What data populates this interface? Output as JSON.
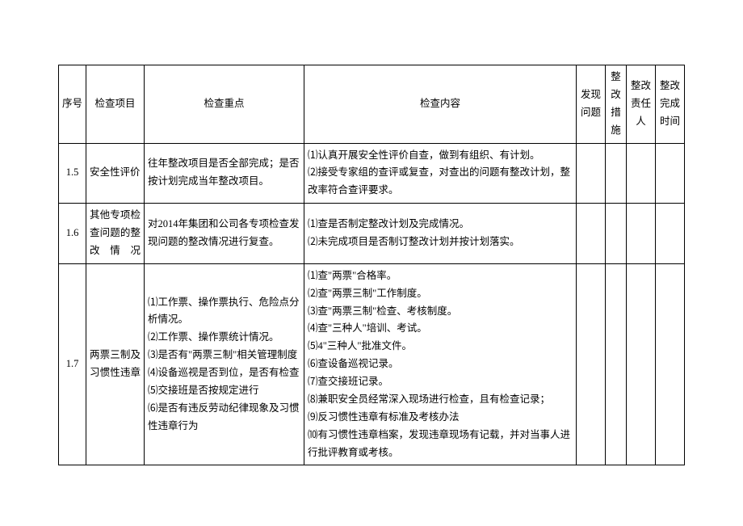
{
  "columns": [
    "序号",
    "检查项目",
    "检查重点",
    "检查内容",
    "发现问题",
    "整改措施",
    "整改责任人",
    "整改完成时间"
  ],
  "rows": [
    {
      "num": "1.5",
      "item": "安全性评价",
      "key": "往年整改项目是否全部完成；是否按计划完成当年整改项目。",
      "content": "⑴认真开展安全性评价自查，做到有组织、有计划。\n⑵接受专家组的查评或复查，对查出的问题有整改计划，整改率符合查评要求。"
    },
    {
      "num": "1.6",
      "item": "其他专项检查问题的整改情况",
      "key": "对2014年集团和公司各专项检查发现问题的整改情况进行复查。",
      "content": "⑴查是否制定整改计划及完成情况。\n⑵未完成项目是否制订整改计划并按计划落实。"
    },
    {
      "num": "1.7",
      "item": "两票三制及习惯性违章",
      "key": "⑴工作票、操作票执行、危险点分析情况。\n⑵工作票、操作票统计情况。\n⑶是否有\"两票三制\"相关管理制度\n⑷设备巡视是否到位，是否有检查\n⑸交接班是否按规定进行\n⑹是否有违反劳动纪律现象及习惯性违章行为",
      "content": "⑴查\"两票\"合格率。\n⑵查\"两票三制\"工作制度。\n⑶查\"两票三制\"检查、考核制度。\n⑷查\"三种人\"培训、考试。\n⑸4\"三种人\"批准文件。\n⑹查设备巡视记录。\n⑺查交接班记录。\n⑻兼职安全员经常深入现场进行检查，且有检查记录；\n⑼反习惯性违章有标准及考核办法\n⑽有习惯性违章档案，发现违章现场有记载，并对当事人进行批评教育或考核。"
    }
  ]
}
